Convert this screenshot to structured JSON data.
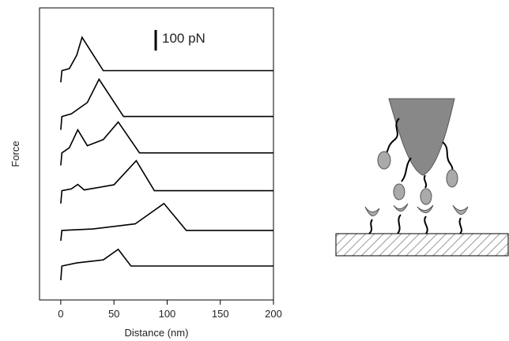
{
  "chart_data": {
    "type": "line",
    "xlabel": "Distance (nm)",
    "ylabel": "Force",
    "xlim": [
      -20,
      200
    ],
    "xticks": [
      0,
      50,
      100,
      150,
      200
    ],
    "ylim": [
      0,
      1420
    ],
    "color": "#000000",
    "scale_bar": {
      "value": 100,
      "label": "100 pN"
    },
    "series": [
      {
        "x": [
          0,
          1,
          8,
          15,
          20,
          40,
          200
        ],
        "values": [
          1058,
          1115,
          1125,
          1190,
          1277,
          1115,
          1115
        ]
      },
      {
        "x": [
          0,
          1,
          10,
          25,
          36,
          59,
          200
        ],
        "values": [
          827,
          892,
          905,
          960,
          1073,
          892,
          892
        ]
      },
      {
        "x": [
          0,
          1,
          8,
          16,
          25,
          40,
          54,
          74,
          200
        ],
        "values": [
          654,
          715,
          740,
          827,
          750,
          780,
          865,
          715,
          715
        ]
      },
      {
        "x": [
          0,
          1,
          10,
          16,
          22,
          50,
          71,
          88,
          200
        ],
        "values": [
          469,
          531,
          540,
          562,
          535,
          560,
          677,
          531,
          531
        ]
      },
      {
        "x": [
          0,
          1,
          30,
          70,
          97,
          118,
          200
        ],
        "values": [
          288,
          338,
          345,
          370,
          469,
          338,
          338
        ]
      },
      {
        "x": [
          0,
          1,
          15,
          40,
          54,
          66,
          200
        ],
        "values": [
          96,
          165,
          180,
          195,
          246,
          165,
          165
        ]
      }
    ]
  }
}
